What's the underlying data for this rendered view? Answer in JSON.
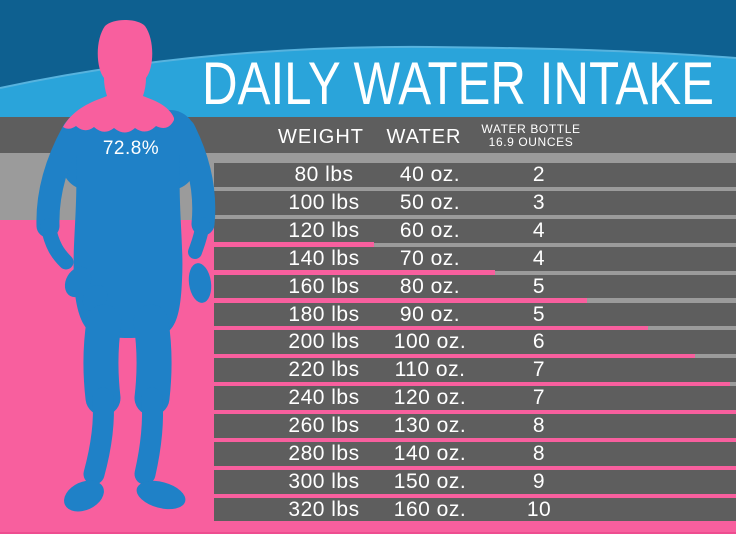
{
  "title": "DAILY WATER INTAKE",
  "figure": {
    "percent": "72.8%"
  },
  "table": {
    "header": {
      "weight": "WEIGHT",
      "water": "WATER",
      "bottle_line1": "WATER BOTTLE",
      "bottle_line2": "16.9 OUNCES"
    },
    "rows": [
      {
        "weight": "80 lbs",
        "water": "40 oz.",
        "bottles": "2",
        "bar": 0
      },
      {
        "weight": "100 lbs",
        "water": "50 oz.",
        "bottles": "3",
        "bar": 0
      },
      {
        "weight": "120 lbs",
        "water": "60 oz.",
        "bottles": "4",
        "bar": 160
      },
      {
        "weight": "140 lbs",
        "water": "70 oz.",
        "bottles": "4",
        "bar": 281
      },
      {
        "weight": "160 lbs",
        "water": "80 oz.",
        "bottles": "5",
        "bar": 373
      },
      {
        "weight": "180 lbs",
        "water": "90 oz.",
        "bottles": "5",
        "bar": 434
      },
      {
        "weight": "200 lbs",
        "water": "100 oz.",
        "bottles": "6",
        "bar": 481
      },
      {
        "weight": "220 lbs",
        "water": "110 oz.",
        "bottles": "7",
        "bar": 516
      },
      {
        "weight": "240 lbs",
        "water": "120 oz.",
        "bottles": "7",
        "bar": 522
      },
      {
        "weight": "260 lbs",
        "water": "130 oz.",
        "bottles": "8",
        "bar": 522
      },
      {
        "weight": "280 lbs",
        "water": "140 oz.",
        "bottles": "8",
        "bar": 522
      },
      {
        "weight": "300 lbs",
        "water": "150 oz.",
        "bottles": "9",
        "bar": 522
      },
      {
        "weight": "320 lbs",
        "water": "160 oz.",
        "bottles": "10",
        "bar": 522
      }
    ]
  },
  "colors": {
    "dark_blue": "#0e6090",
    "light_blue": "#2aa4da",
    "body_blue": "#1f81c7",
    "pink": "#f85f9e",
    "dark_gray": "#5e5e5e",
    "light_gray": "#9b9b9b",
    "text": "#ffffff"
  },
  "chart_data": {
    "type": "table",
    "title": "DAILY WATER INTAKE",
    "columns": [
      "WEIGHT",
      "WATER",
      "WATER BOTTLE 16.9 OUNCES"
    ],
    "weights_lbs": [
      80,
      100,
      120,
      140,
      160,
      180,
      200,
      220,
      240,
      260,
      280,
      300,
      320
    ],
    "water_oz": [
      40,
      50,
      60,
      70,
      80,
      90,
      100,
      110,
      120,
      130,
      140,
      150,
      160
    ],
    "bottles_16_9oz": [
      2,
      3,
      4,
      4,
      5,
      5,
      6,
      7,
      7,
      8,
      8,
      9,
      10
    ],
    "body_water_percent": 72.8,
    "annotations": [
      "72.8%"
    ]
  }
}
